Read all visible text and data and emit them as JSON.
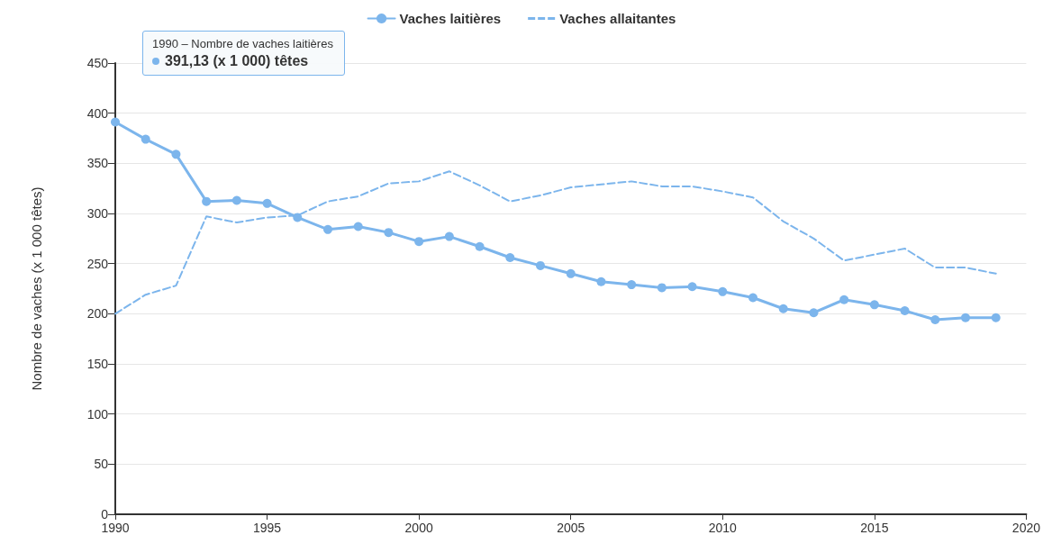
{
  "chart_data": {
    "type": "line",
    "ylabel": "Nombre de vaches (x 1 000 têtes)",
    "x": [
      1990,
      1991,
      1992,
      1993,
      1994,
      1995,
      1996,
      1997,
      1998,
      1999,
      2000,
      2001,
      2002,
      2003,
      2004,
      2005,
      2006,
      2007,
      2008,
      2009,
      2010,
      2011,
      2012,
      2013,
      2014,
      2015,
      2016,
      2017,
      2018,
      2019
    ],
    "series": [
      {
        "name": "Vaches laitières",
        "color": "#7cb5ec",
        "marker": "circle",
        "line_style": "solid",
        "values": [
          391.13,
          374,
          359,
          312,
          313,
          310,
          296,
          284,
          287,
          281,
          272,
          277,
          267,
          256,
          248,
          240,
          232,
          229,
          226,
          227,
          222,
          216,
          205,
          201,
          214,
          209,
          203,
          194,
          196,
          196
        ]
      },
      {
        "name": "Vaches allaitantes",
        "color": "#7cb5ec",
        "marker": "none",
        "line_style": "dashed",
        "values": [
          200,
          219,
          228,
          297,
          291,
          296,
          298,
          312,
          317,
          330,
          332,
          342,
          328,
          312,
          318,
          326,
          329,
          332,
          327,
          327,
          322,
          316,
          292,
          275,
          253,
          259,
          265,
          246,
          246,
          240
        ]
      }
    ],
    "xlim": [
      1990,
      2020
    ],
    "xticks": [
      1990,
      1995,
      2000,
      2005,
      2010,
      2015,
      2020
    ],
    "ylim": [
      0,
      450
    ],
    "yticks": [
      0,
      50,
      100,
      150,
      200,
      250,
      300,
      350,
      400,
      450
    ],
    "grid": "y",
    "legend": "top",
    "annotations": [
      "1990 – Nombre de vaches laitières",
      "391,13 (x 1 000) têtes"
    ]
  }
}
